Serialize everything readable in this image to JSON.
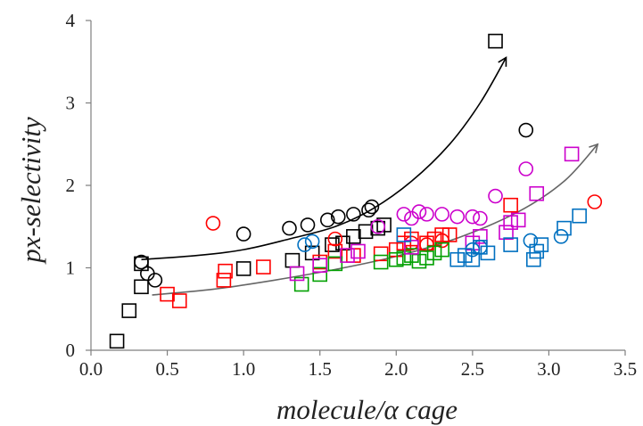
{
  "chart_data": {
    "type": "scatter",
    "title": "",
    "xlabel": "molecule/α cage",
    "ylabel": "px-selectivity",
    "xlim": [
      0,
      3.5
    ],
    "ylim": [
      0,
      4
    ],
    "xticks": [
      "0.0",
      "0.5",
      "1.0",
      "1.5",
      "2.0",
      "2.5",
      "3.0",
      "3.5"
    ],
    "yticks": [
      "0",
      "1",
      "2",
      "3",
      "4"
    ],
    "grid": false,
    "legend": "none",
    "series": [
      {
        "marker": "square",
        "color": "#000000",
        "points": [
          [
            0.17,
            0.11
          ],
          [
            0.25,
            0.48
          ],
          [
            0.33,
            0.77
          ],
          [
            0.33,
            1.05
          ],
          [
            1.0,
            0.99
          ],
          [
            1.32,
            1.09
          ],
          [
            1.45,
            1.18
          ],
          [
            1.58,
            1.28
          ],
          [
            1.65,
            1.3
          ],
          [
            1.72,
            1.38
          ],
          [
            1.8,
            1.44
          ],
          [
            1.88,
            1.48
          ],
          [
            1.92,
            1.52
          ],
          [
            2.65,
            3.75
          ]
        ]
      },
      {
        "marker": "circle",
        "color": "#000000",
        "points": [
          [
            0.33,
            1.07
          ],
          [
            0.37,
            0.93
          ],
          [
            0.42,
            0.85
          ],
          [
            1.0,
            1.41
          ],
          [
            1.3,
            1.48
          ],
          [
            1.42,
            1.52
          ],
          [
            1.55,
            1.58
          ],
          [
            1.62,
            1.62
          ],
          [
            1.72,
            1.65
          ],
          [
            1.82,
            1.7
          ],
          [
            1.84,
            1.74
          ],
          [
            2.85,
            2.67
          ]
        ]
      },
      {
        "marker": "square",
        "color": "#ff0000",
        "points": [
          [
            0.5,
            0.68
          ],
          [
            0.58,
            0.6
          ],
          [
            0.87,
            0.85
          ],
          [
            0.88,
            0.96
          ],
          [
            1.13,
            1.01
          ],
          [
            1.5,
            1.07
          ],
          [
            1.6,
            1.2
          ],
          [
            1.72,
            1.15
          ],
          [
            1.9,
            1.17
          ],
          [
            2.0,
            1.22
          ],
          [
            2.05,
            1.3
          ],
          [
            2.1,
            1.35
          ],
          [
            2.2,
            1.3
          ],
          [
            2.25,
            1.35
          ],
          [
            2.3,
            1.4
          ],
          [
            2.35,
            1.4
          ],
          [
            2.75,
            1.76
          ]
        ]
      },
      {
        "marker": "circle",
        "color": "#ff0000",
        "points": [
          [
            0.8,
            1.54
          ],
          [
            1.6,
            1.35
          ],
          [
            2.1,
            1.3
          ],
          [
            2.2,
            1.28
          ],
          [
            2.3,
            1.33
          ],
          [
            3.3,
            1.8
          ]
        ]
      },
      {
        "marker": "square",
        "color": "#00a000",
        "points": [
          [
            1.38,
            0.8
          ],
          [
            1.5,
            0.92
          ],
          [
            1.6,
            1.05
          ],
          [
            1.9,
            1.07
          ],
          [
            2.0,
            1.1
          ],
          [
            2.05,
            1.12
          ],
          [
            2.1,
            1.15
          ],
          [
            2.15,
            1.08
          ],
          [
            2.2,
            1.12
          ],
          [
            2.25,
            1.18
          ],
          [
            2.3,
            1.22
          ]
        ]
      },
      {
        "marker": "square",
        "color": "#cc00cc",
        "points": [
          [
            1.35,
            0.93
          ],
          [
            1.5,
            1.03
          ],
          [
            1.68,
            1.15
          ],
          [
            1.75,
            1.2
          ],
          [
            2.1,
            1.25
          ],
          [
            2.5,
            1.3
          ],
          [
            2.55,
            1.38
          ],
          [
            2.72,
            1.43
          ],
          [
            2.75,
            1.55
          ],
          [
            2.8,
            1.58
          ],
          [
            2.92,
            1.9
          ],
          [
            3.15,
            2.38
          ]
        ]
      },
      {
        "marker": "circle",
        "color": "#cc00cc",
        "points": [
          [
            1.88,
            1.5
          ],
          [
            2.05,
            1.65
          ],
          [
            2.1,
            1.6
          ],
          [
            2.15,
            1.68
          ],
          [
            2.2,
            1.65
          ],
          [
            2.3,
            1.65
          ],
          [
            2.4,
            1.62
          ],
          [
            2.5,
            1.62
          ],
          [
            2.55,
            1.6
          ],
          [
            2.65,
            1.87
          ],
          [
            2.85,
            2.2
          ]
        ]
      },
      {
        "marker": "square",
        "color": "#0070c0",
        "points": [
          [
            2.05,
            1.4
          ],
          [
            2.4,
            1.1
          ],
          [
            2.45,
            1.15
          ],
          [
            2.5,
            1.1
          ],
          [
            2.55,
            1.25
          ],
          [
            2.6,
            1.18
          ],
          [
            2.75,
            1.28
          ],
          [
            2.9,
            1.1
          ],
          [
            2.92,
            1.2
          ],
          [
            2.95,
            1.28
          ],
          [
            3.1,
            1.48
          ],
          [
            3.2,
            1.63
          ]
        ]
      },
      {
        "marker": "circle",
        "color": "#0070c0",
        "points": [
          [
            1.4,
            1.28
          ],
          [
            1.45,
            1.32
          ],
          [
            2.5,
            1.22
          ],
          [
            2.55,
            1.25
          ],
          [
            2.88,
            1.33
          ],
          [
            3.08,
            1.38
          ]
        ]
      }
    ],
    "trend_curves": [
      {
        "color": "#000000",
        "points": [
          [
            0.33,
            1.1
          ],
          [
            0.7,
            1.15
          ],
          [
            1.0,
            1.22
          ],
          [
            1.3,
            1.35
          ],
          [
            1.6,
            1.5
          ],
          [
            1.85,
            1.72
          ],
          [
            2.1,
            2.05
          ],
          [
            2.35,
            2.5
          ],
          [
            2.55,
            3.0
          ],
          [
            2.72,
            3.55
          ]
        ]
      },
      {
        "color": "#666666",
        "points": [
          [
            0.4,
            0.67
          ],
          [
            0.8,
            0.74
          ],
          [
            1.2,
            0.85
          ],
          [
            1.6,
            0.98
          ],
          [
            2.0,
            1.14
          ],
          [
            2.4,
            1.36
          ],
          [
            2.8,
            1.68
          ],
          [
            3.1,
            2.05
          ],
          [
            3.32,
            2.5
          ]
        ]
      }
    ]
  }
}
